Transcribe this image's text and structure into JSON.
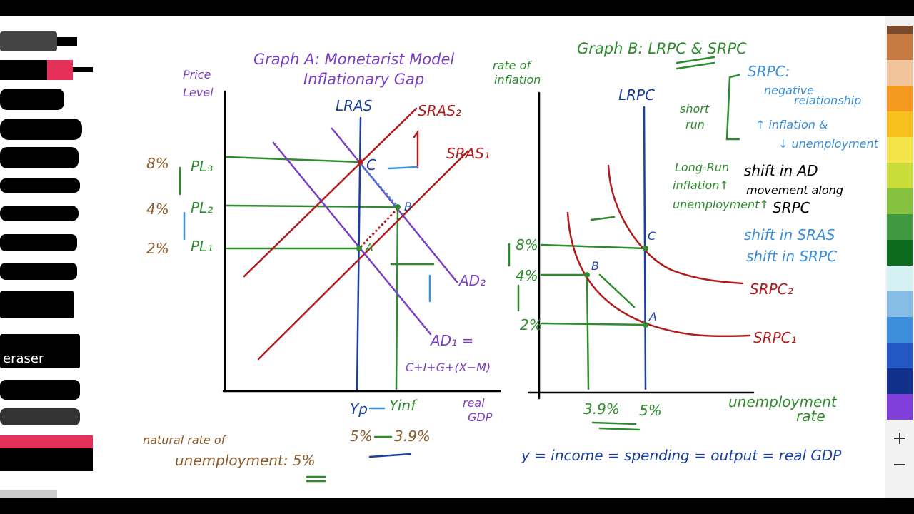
{
  "toolbar": {
    "eraser": "eraser"
  },
  "graph_a": {
    "title": "Graph A: Monetarist Model",
    "subtitle": "Inflationary Gap",
    "y_axis_label": [
      "Price",
      "Level"
    ],
    "curves": {
      "lras": "LRAS",
      "sras2": "SRAS₂",
      "sras1": "SRAS₁",
      "ad2": "AD₂",
      "ad1": "AD₁ ="
    },
    "ad_components": "C+I+G+(X−M)",
    "price_levels": [
      {
        "rate": "8%",
        "label": "PL₃"
      },
      {
        "rate": "4%",
        "label": "PL₂"
      },
      {
        "rate": "2%",
        "label": "PL₁"
      }
    ],
    "points": {
      "c": "C",
      "b": "B",
      "a": "A"
    },
    "output_labels": {
      "potential": "Yp",
      "inflationary": "Yinf"
    },
    "x_axis_label": [
      "real",
      "GDP"
    ],
    "unemployment": {
      "natural": "5%",
      "inflationary": "3.9%"
    },
    "note": [
      "natural rate of",
      "unemployment: 5%"
    ]
  },
  "graph_b": {
    "title": "Graph B: LRPC & SRPC",
    "y_axis_label": [
      "rate of",
      "inflation"
    ],
    "lrpc": "LRPC",
    "short_run": [
      "short",
      "run"
    ],
    "srpc_notes": [
      "SRPC:",
      "negative",
      "relationship",
      "↑ inflation &",
      "↓ unemployment"
    ],
    "long_run": [
      "Long-Run",
      "inflation↑",
      "unemployment↑"
    ],
    "shift_ad": "shift in AD",
    "movement": [
      "movement along",
      "SRPC"
    ],
    "shift_sras": "shift in SRAS",
    "shift_srpc": "shift in SRPC",
    "rates": [
      "8%",
      "4%",
      "2%"
    ],
    "points": {
      "c": "C",
      "b": "B",
      "a": "A"
    },
    "curves": {
      "srpc2": "SRPC₂",
      "srpc1": "SRPC₁"
    },
    "x_values": [
      "3.9%",
      "5%"
    ],
    "x_axis_label": [
      "unemployment",
      "rate"
    ],
    "identity": "y = income = spending = output = real GDP"
  }
}
